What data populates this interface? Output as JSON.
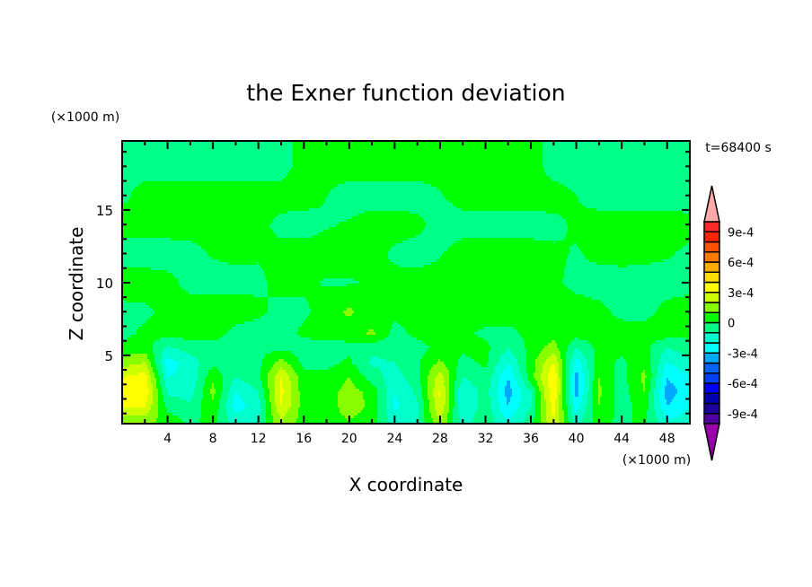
{
  "chart_data": {
    "type": "contour",
    "title": "the Exner function deviation",
    "xlabel": "X coordinate",
    "ylabel": "Z coordinate",
    "x_unit_label": "(×1000 m)",
    "y_unit_label": "(×1000 m)",
    "time_label": "t=68400 s",
    "xlim": [
      0,
      50
    ],
    "ylim": [
      0.3,
      19.75
    ],
    "x_ticks": [
      4,
      8,
      12,
      16,
      20,
      24,
      28,
      32,
      36,
      40,
      44,
      48
    ],
    "x_tick_labels": [
      "4",
      "8",
      "12",
      "16",
      "20",
      "24",
      "28",
      "32",
      "36",
      "40",
      "44",
      "48"
    ],
    "x_minor_step": 2,
    "y_ticks": [
      5,
      10,
      15
    ],
    "y_tick_labels": [
      "5",
      "10",
      "15"
    ],
    "y_minor_step": 1,
    "grid": false,
    "colorbar": {
      "placement": "right",
      "levels_min": -0.001,
      "levels_max": 0.001,
      "level_step": 0.0001,
      "colors": [
        "#5000a0",
        "#1e00a0",
        "#0000b4",
        "#0000ff",
        "#0040ff",
        "#0064ff",
        "#00a8ff",
        "#00ffff",
        "#00ffcc",
        "#00ff88",
        "#00ff00",
        "#88ff00",
        "#ccff00",
        "#ffff00",
        "#ffdc00",
        "#ffaa00",
        "#ff7800",
        "#ff5000",
        "#ff2400",
        "#ff2828"
      ],
      "over_color": "#ffaaaa",
      "under_color": "#9900aa",
      "tick_values": [
        0.0009,
        0.0006,
        0.0003,
        0,
        -0.0003,
        -0.0006,
        -0.0009
      ],
      "tick_labels": [
        "9e-4",
        "6e-4",
        "3e-4",
        "0",
        "-3e-4",
        "-6e-4",
        "-9e-4"
      ]
    },
    "field_units": "1e-4",
    "grid_x": [
      0,
      2,
      4,
      6,
      8,
      10,
      12,
      14,
      16,
      18,
      20,
      22,
      24,
      26,
      28,
      30,
      32,
      34,
      36,
      38,
      40,
      42,
      44,
      46,
      48,
      50
    ],
    "grid_z": [
      0.5,
      1.5,
      2.5,
      3.5,
      4.5,
      5.5,
      6.5,
      8,
      10,
      12,
      14,
      16,
      18,
      20
    ],
    "values": [
      [
        1.5,
        1.5,
        0.5,
        -0.2,
        0.3,
        -1.5,
        -1,
        2,
        0.5,
        0.5,
        1,
        0.5,
        -1.5,
        -1,
        2,
        -1.5,
        -0.3,
        -2,
        -0.5,
        3,
        -1.5,
        0.5,
        -0.3,
        0.3,
        -2,
        -1.5
      ],
      [
        3,
        3,
        -0.3,
        -0.8,
        0.8,
        -2.5,
        -1.5,
        3,
        0.5,
        0.5,
        1.5,
        0.8,
        -2.2,
        -1.2,
        3,
        -2,
        -0.5,
        -3,
        -1,
        3.5,
        -2.5,
        1,
        -0.5,
        0.5,
        -3,
        -2
      ],
      [
        3.5,
        3.8,
        -1.2,
        -1.5,
        1.3,
        -2,
        -1,
        3.3,
        0.4,
        0.5,
        1.5,
        0.6,
        -2,
        -0.8,
        3.2,
        -2,
        -0.5,
        -3.5,
        -1,
        4,
        -3.5,
        1.2,
        -0.5,
        1,
        -3.5,
        -2.5
      ],
      [
        3,
        3.5,
        -2,
        -1.8,
        0.8,
        -1,
        -0.3,
        3,
        0.3,
        0.3,
        1,
        -0.5,
        -1.5,
        -0.3,
        2.5,
        -1,
        -0.3,
        -3,
        0.5,
        4,
        -3.5,
        1,
        -0.4,
        1.3,
        -3,
        -2
      ],
      [
        1.5,
        2,
        -2.5,
        -1.5,
        -0.3,
        -0.5,
        -0.3,
        1.5,
        -0.3,
        -0.3,
        0.2,
        -1.2,
        -1,
        -0.2,
        1.2,
        -0.3,
        0.2,
        -2,
        0.5,
        3,
        -2.5,
        0.5,
        -0.2,
        0.8,
        -2,
        -1.2
      ],
      [
        0.3,
        0.5,
        -1.2,
        -0.6,
        -0.4,
        -0.3,
        -0.4,
        -0.2,
        -0.5,
        -0.5,
        -0.3,
        -0.8,
        -0.5,
        -0.3,
        0.2,
        0.2,
        0.3,
        -1,
        0.3,
        1.5,
        -1,
        0.3,
        0.3,
        0.3,
        -1,
        -0.5
      ],
      [
        -0.3,
        0.2,
        0.4,
        0.5,
        0.4,
        -0.3,
        -0.5,
        -0.4,
        0.2,
        0.5,
        0.4,
        1.2,
        -0.3,
        0.2,
        0.4,
        0.2,
        -0.2,
        -0.3,
        0.3,
        0.5,
        0.5,
        0.5,
        0.5,
        0.4,
        0.5,
        0.3
      ],
      [
        -0.3,
        -0.2,
        0.3,
        0.5,
        0.5,
        0.5,
        0.2,
        -0.3,
        -0.2,
        0.5,
        1.2,
        0.3,
        0.2,
        0.5,
        0.5,
        0.5,
        0.5,
        0.5,
        0.5,
        0.5,
        0.5,
        0.3,
        -0.3,
        -0.3,
        0.3,
        0.3
      ],
      [
        0.5,
        0.5,
        0.3,
        -0.3,
        -0.4,
        -0.3,
        -0.2,
        0.3,
        0.2,
        -0.1,
        -0.1,
        0.1,
        0.3,
        0.5,
        0.5,
        0.5,
        0.5,
        0.5,
        0.5,
        0.2,
        -0.3,
        -0.5,
        -0.5,
        -0.5,
        -0.4,
        -0.2
      ],
      [
        -0.5,
        -0.5,
        -0.5,
        -0.3,
        0.1,
        0.2,
        0.1,
        0.3,
        0.5,
        0.5,
        0.5,
        0.4,
        -0.2,
        -0.5,
        -0.1,
        0.5,
        0.5,
        0.5,
        0.5,
        0.2,
        -0.1,
        0.3,
        0.4,
        0.3,
        0.1,
        -0.2
      ],
      [
        0.5,
        0.5,
        0.5,
        0.4,
        0.3,
        0.4,
        0.3,
        -0.3,
        -0.5,
        -0.1,
        0.1,
        0.5,
        0.5,
        0.3,
        -0.5,
        -0.5,
        -0.5,
        -0.5,
        -0.5,
        -0.3,
        0.2,
        0.5,
        0.5,
        0.5,
        0.5,
        0.3
      ],
      [
        -0.3,
        0.5,
        0.5,
        0.5,
        0.5,
        0.5,
        0.5,
        0.5,
        0.5,
        0,
        -0.5,
        -0.5,
        -0.5,
        -0.5,
        -0.1,
        0.5,
        0.5,
        0.5,
        0.5,
        0.5,
        0,
        -0.5,
        -0.5,
        -0.5,
        -0.5,
        -0.5
      ],
      [
        -0.5,
        -0.5,
        -0.5,
        -0.5,
        -0.5,
        -0.5,
        -0.5,
        -0.5,
        0.5,
        0.5,
        0.5,
        0.5,
        0.5,
        0.5,
        0.5,
        0.5,
        0.5,
        0.5,
        0.5,
        -0.5,
        -0.5,
        -0.5,
        -0.5,
        -0.5,
        -0.5,
        -0.5
      ],
      [
        -0.5,
        -0.5,
        -0.5,
        -0.5,
        -0.5,
        -0.5,
        -0.5,
        -0.5,
        0.5,
        0.5,
        0.5,
        0.5,
        0.5,
        0.5,
        0.5,
        0.5,
        0.5,
        0.5,
        0.5,
        -0.5,
        -0.5,
        -0.5,
        -0.5,
        -0.5,
        -0.5,
        -0.5
      ]
    ]
  }
}
